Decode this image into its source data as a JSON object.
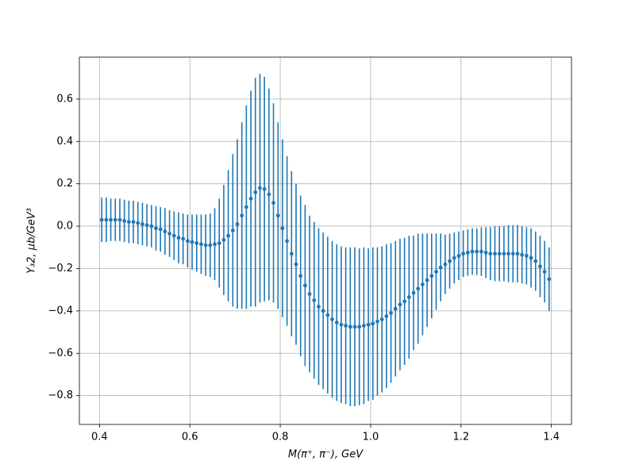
{
  "chart_data": {
    "type": "errorbar",
    "xlabel": "M(π⁺, π⁻), GeV",
    "ylabel": "Y₃2, μb/GeV³",
    "x": [
      0.405,
      0.415,
      0.425,
      0.435,
      0.445,
      0.455,
      0.465,
      0.475,
      0.485,
      0.495,
      0.505,
      0.515,
      0.525,
      0.535,
      0.545,
      0.555,
      0.565,
      0.575,
      0.585,
      0.595,
      0.605,
      0.615,
      0.625,
      0.635,
      0.645,
      0.655,
      0.665,
      0.675,
      0.685,
      0.695,
      0.705,
      0.715,
      0.725,
      0.735,
      0.745,
      0.755,
      0.765,
      0.775,
      0.785,
      0.795,
      0.805,
      0.815,
      0.825,
      0.835,
      0.845,
      0.855,
      0.865,
      0.875,
      0.885,
      0.895,
      0.905,
      0.915,
      0.925,
      0.935,
      0.945,
      0.955,
      0.965,
      0.975,
      0.985,
      0.995,
      1.005,
      1.015,
      1.025,
      1.035,
      1.045,
      1.055,
      1.065,
      1.075,
      1.085,
      1.095,
      1.105,
      1.115,
      1.125,
      1.135,
      1.145,
      1.155,
      1.165,
      1.175,
      1.185,
      1.195,
      1.205,
      1.215,
      1.225,
      1.235,
      1.245,
      1.255,
      1.265,
      1.275,
      1.285,
      1.295,
      1.305,
      1.315,
      1.325,
      1.335,
      1.345,
      1.355,
      1.365,
      1.375,
      1.385,
      1.395
    ],
    "series": [
      {
        "color": "#1f77b4",
        "values": [
          0.03,
          0.03,
          0.03,
          0.03,
          0.03,
          0.025,
          0.02,
          0.02,
          0.015,
          0.01,
          0.005,
          0.0,
          -0.01,
          -0.015,
          -0.025,
          -0.035,
          -0.045,
          -0.055,
          -0.06,
          -0.07,
          -0.075,
          -0.08,
          -0.085,
          -0.09,
          -0.09,
          -0.085,
          -0.08,
          -0.065,
          -0.045,
          -0.02,
          0.01,
          0.05,
          0.09,
          0.13,
          0.16,
          0.18,
          0.175,
          0.15,
          0.11,
          0.05,
          -0.01,
          -0.07,
          -0.13,
          -0.18,
          -0.235,
          -0.28,
          -0.32,
          -0.35,
          -0.38,
          -0.4,
          -0.42,
          -0.44,
          -0.455,
          -0.465,
          -0.47,
          -0.475,
          -0.475,
          -0.475,
          -0.47,
          -0.465,
          -0.46,
          -0.45,
          -0.44,
          -0.425,
          -0.41,
          -0.39,
          -0.37,
          -0.355,
          -0.335,
          -0.315,
          -0.295,
          -0.275,
          -0.255,
          -0.235,
          -0.215,
          -0.195,
          -0.18,
          -0.165,
          -0.15,
          -0.14,
          -0.13,
          -0.125,
          -0.12,
          -0.12,
          -0.12,
          -0.125,
          -0.13,
          -0.13,
          -0.13,
          -0.13,
          -0.13,
          -0.13,
          -0.13,
          -0.135,
          -0.14,
          -0.15,
          -0.165,
          -0.19,
          -0.215,
          -0.25
        ],
        "errors": [
          0.105,
          0.105,
          0.1,
          0.1,
          0.1,
          0.1,
          0.1,
          0.1,
          0.1,
          0.1,
          0.1,
          0.1,
          0.105,
          0.105,
          0.11,
          0.11,
          0.115,
          0.12,
          0.12,
          0.125,
          0.13,
          0.135,
          0.14,
          0.145,
          0.15,
          0.17,
          0.21,
          0.26,
          0.31,
          0.36,
          0.4,
          0.44,
          0.48,
          0.51,
          0.54,
          0.54,
          0.53,
          0.5,
          0.47,
          0.44,
          0.42,
          0.4,
          0.39,
          0.38,
          0.38,
          0.38,
          0.37,
          0.37,
          0.37,
          0.37,
          0.37,
          0.37,
          0.37,
          0.37,
          0.37,
          0.375,
          0.375,
          0.37,
          0.37,
          0.36,
          0.36,
          0.35,
          0.345,
          0.34,
          0.33,
          0.32,
          0.31,
          0.3,
          0.29,
          0.27,
          0.26,
          0.24,
          0.22,
          0.2,
          0.18,
          0.16,
          0.14,
          0.13,
          0.12,
          0.115,
          0.11,
          0.11,
          0.11,
          0.11,
          0.115,
          0.12,
          0.125,
          0.13,
          0.13,
          0.13,
          0.135,
          0.135,
          0.135,
          0.135,
          0.135,
          0.14,
          0.14,
          0.145,
          0.145,
          0.15
        ]
      }
    ],
    "xlim": [
      0.3555,
      1.4445
    ],
    "ylim": [
      -0.936,
      0.798
    ],
    "xticks": [
      0.4,
      0.6,
      0.8,
      {
        "value": 1.0,
        "label": "1.0"
      },
      1.2,
      1.4
    ],
    "yticks": [
      {
        "value": -0.8,
        "label": "−0.8"
      },
      {
        "value": -0.6,
        "label": "−0.6"
      },
      {
        "value": -0.4,
        "label": "−0.4"
      },
      {
        "value": -0.2,
        "label": "−0.2"
      },
      {
        "value": 0.0,
        "label": "0.0"
      },
      0.2,
      0.4,
      0.6
    ],
    "grid": true
  }
}
